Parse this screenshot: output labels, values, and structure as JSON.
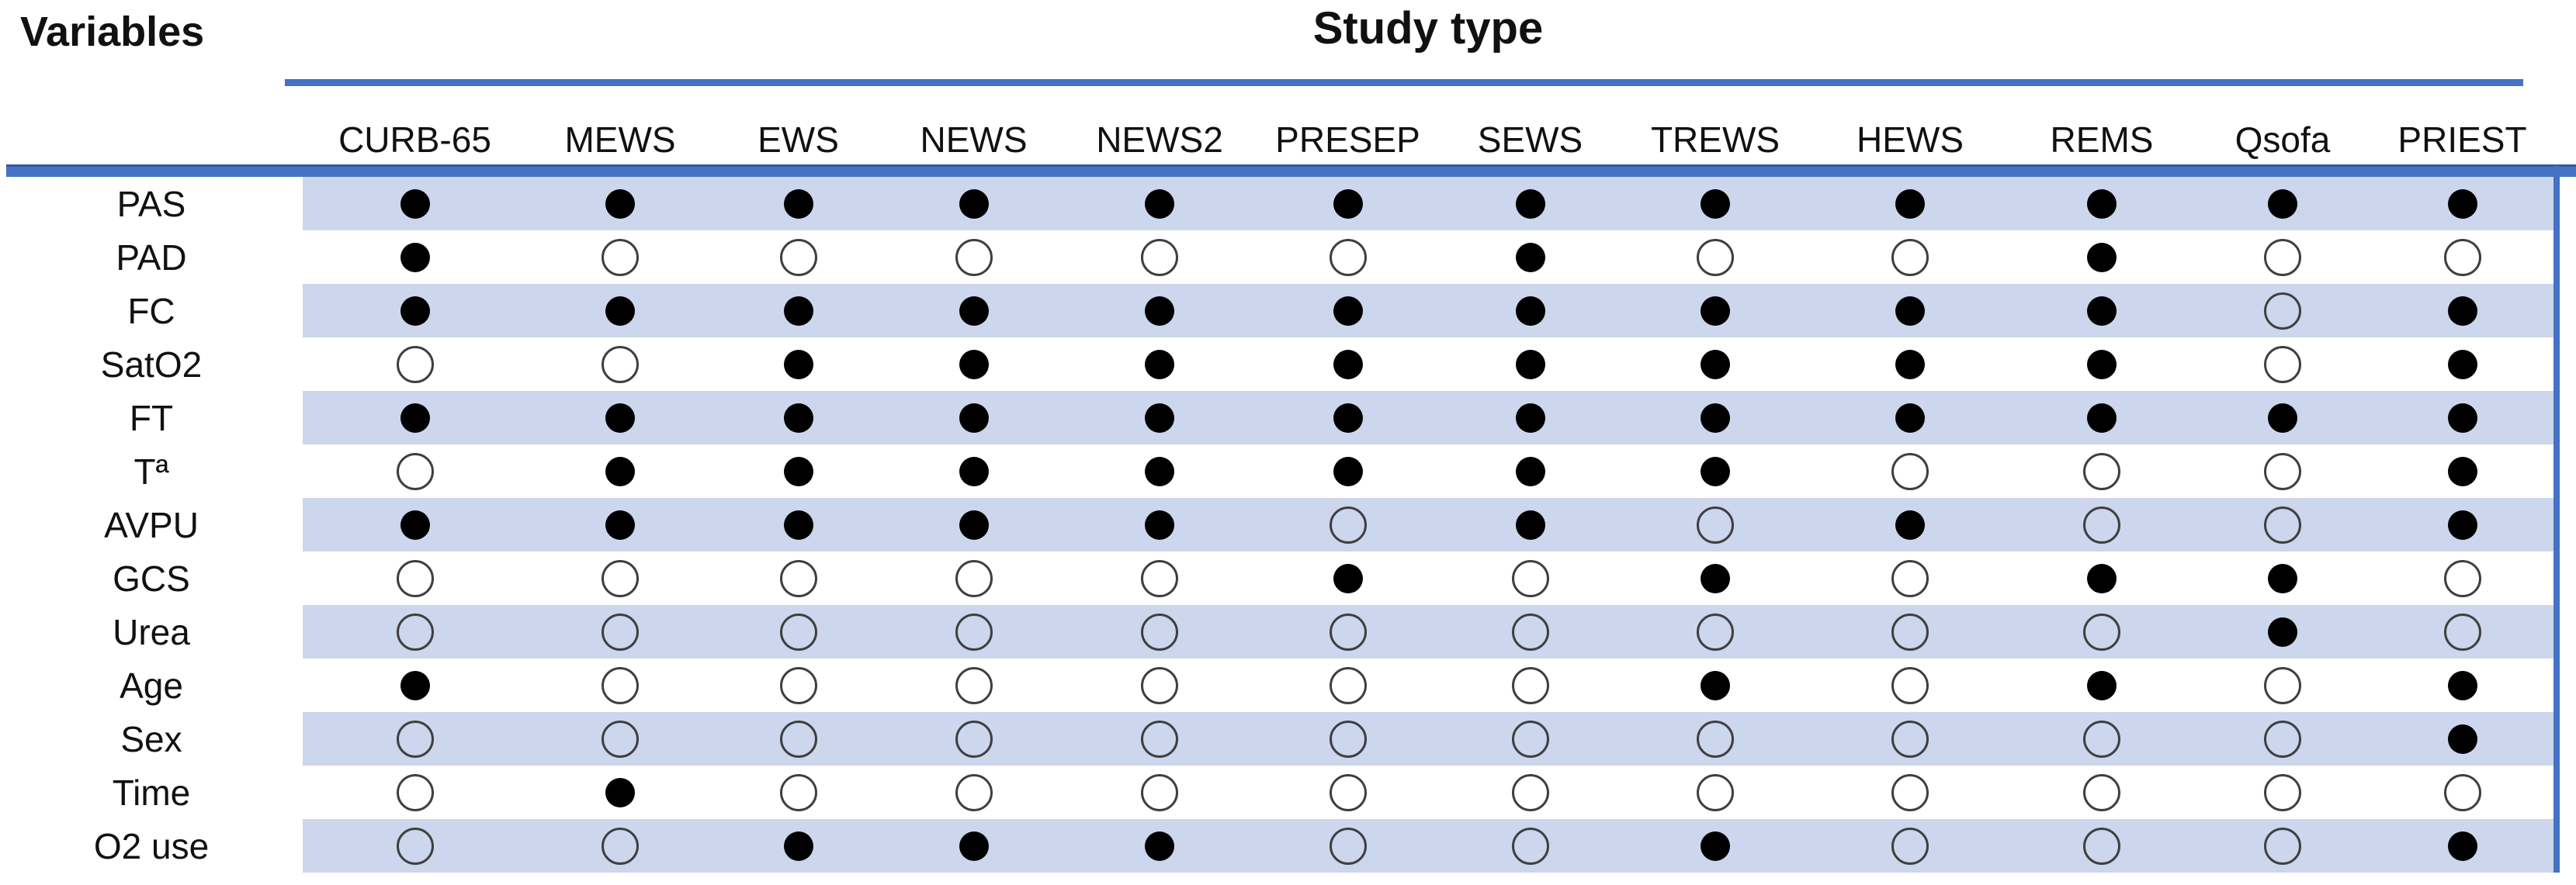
{
  "header": {
    "variables_label": "Variables",
    "study_type_label": "Study type"
  },
  "colors": {
    "accent_line": "#4472c4",
    "stripe": "#ccd6ec",
    "dot_filled": "#000000",
    "dot_outline": "#3f3f3f"
  },
  "markers": {
    "filled": "●",
    "empty": "○"
  },
  "chart_data": {
    "type": "table",
    "title": "Study type",
    "row_axis_label": "Variables",
    "columns": [
      "CURB-65",
      "MEWS",
      "EWS",
      "NEWS",
      "NEWS2",
      "PRESEP",
      "SEWS",
      "TREWS",
      "HEWS",
      "REMS",
      "Qsofa",
      "PRIEST"
    ],
    "rows": [
      {
        "label": "PAS",
        "values": [
          1,
          1,
          1,
          1,
          1,
          1,
          1,
          1,
          1,
          1,
          1,
          1
        ]
      },
      {
        "label": "PAD",
        "values": [
          1,
          0,
          0,
          0,
          0,
          0,
          1,
          0,
          0,
          1,
          0,
          0
        ]
      },
      {
        "label": "FC",
        "values": [
          1,
          1,
          1,
          1,
          1,
          1,
          1,
          1,
          1,
          1,
          0,
          1
        ]
      },
      {
        "label": "SatO2",
        "values": [
          0,
          0,
          1,
          1,
          1,
          1,
          1,
          1,
          1,
          1,
          0,
          1
        ]
      },
      {
        "label": "FT",
        "values": [
          1,
          1,
          1,
          1,
          1,
          1,
          1,
          1,
          1,
          1,
          1,
          1
        ]
      },
      {
        "label": "Tª",
        "values": [
          0,
          1,
          1,
          1,
          1,
          1,
          1,
          1,
          0,
          0,
          0,
          1
        ]
      },
      {
        "label": "AVPU",
        "values": [
          1,
          1,
          1,
          1,
          1,
          0,
          1,
          0,
          1,
          0,
          0,
          1
        ]
      },
      {
        "label": "GCS",
        "values": [
          0,
          0,
          0,
          0,
          0,
          1,
          0,
          1,
          0,
          1,
          1,
          0
        ]
      },
      {
        "label": "Urea",
        "values": [
          0,
          0,
          0,
          0,
          0,
          0,
          0,
          0,
          0,
          0,
          1,
          0
        ]
      },
      {
        "label": "Age",
        "values": [
          1,
          0,
          0,
          0,
          0,
          0,
          0,
          1,
          0,
          1,
          0,
          1
        ]
      },
      {
        "label": "Sex",
        "values": [
          0,
          0,
          0,
          0,
          0,
          0,
          0,
          0,
          0,
          0,
          0,
          1
        ]
      },
      {
        "label": "Time",
        "values": [
          0,
          1,
          0,
          0,
          0,
          0,
          0,
          0,
          0,
          0,
          0,
          0
        ]
      },
      {
        "label": "O2 use",
        "values": [
          0,
          0,
          1,
          1,
          1,
          0,
          0,
          1,
          0,
          0,
          0,
          1
        ]
      }
    ],
    "layout": {
      "striped_rows": "odd rows (PAS, FC, FT, AVPU, Urea, Sex, O2 use) have light blue banding",
      "grid": "off",
      "legend": "none"
    }
  }
}
